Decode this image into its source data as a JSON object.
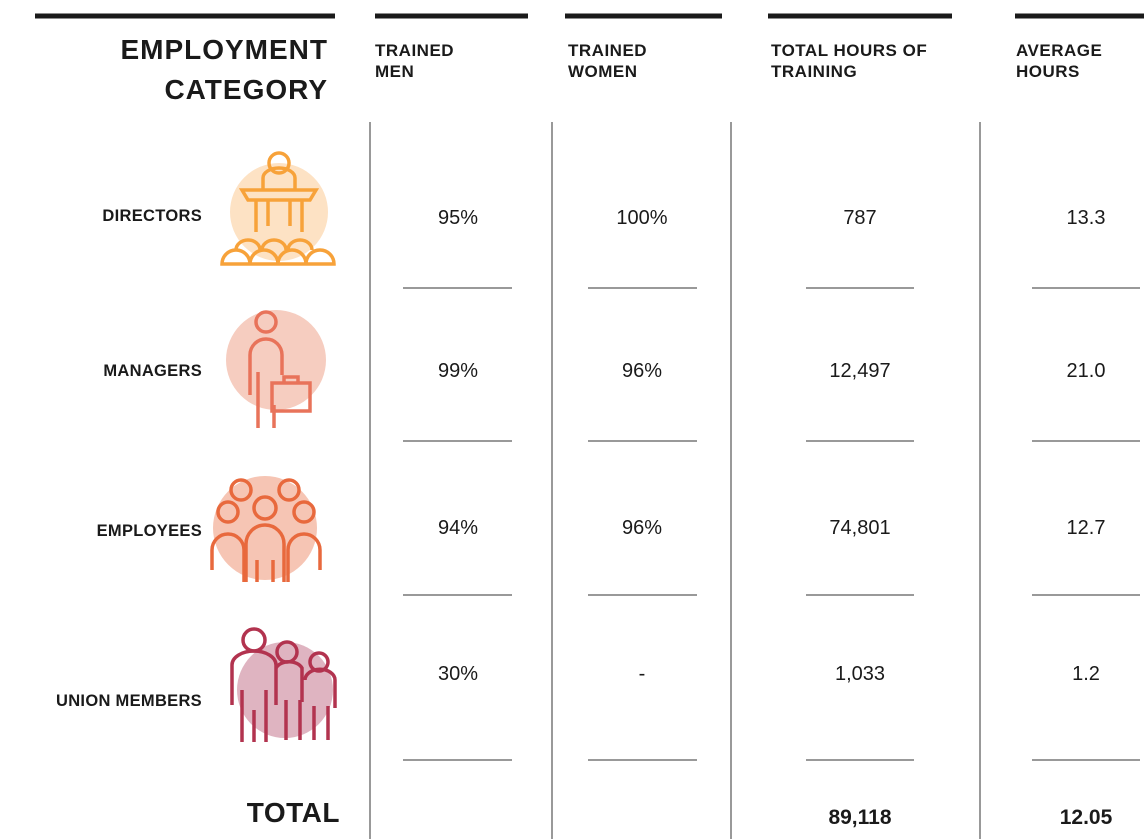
{
  "header": {
    "category": "EMPLOYMENT CATEGORY",
    "columns": [
      "TRAINED MEN",
      "TRAINED WOMEN",
      "TOTAL HOURS OF TRAINING",
      "AVERAGE HOURS"
    ]
  },
  "table": {
    "rows": [
      {
        "label": "DIRECTORS",
        "cells": [
          "95%",
          "100%",
          "787",
          "13.3"
        ]
      },
      {
        "label": "MANAGERS",
        "cells": [
          "99%",
          "96%",
          "12,497",
          "21.0"
        ]
      },
      {
        "label": "EMPLOYEES",
        "cells": [
          "94%",
          "96%",
          "74,801",
          "12.7"
        ]
      },
      {
        "label": "UNION MEMBERS",
        "cells": [
          "30%",
          "-",
          "1,033",
          "1.2"
        ]
      }
    ]
  },
  "total": {
    "label": "TOTAL",
    "cells": [
      "",
      "",
      "89,118",
      "12.05"
    ]
  }
}
